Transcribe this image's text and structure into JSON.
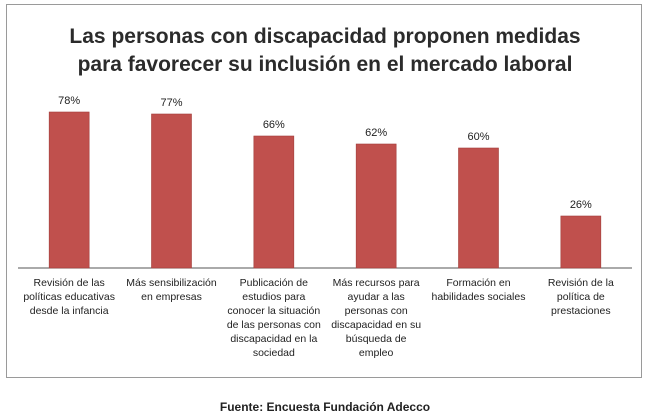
{
  "chart_data": {
    "type": "bar",
    "title_lines": [
      "Las personas con discapacidad proponen medidas",
      "para favorecer su inclusión en el mercado laboral"
    ],
    "categories": [
      [
        "Revisión de las",
        "políticas educativas",
        "desde la infancia"
      ],
      [
        "Más sensibilización",
        "en empresas"
      ],
      [
        "Publicación de",
        "estudios para",
        "conocer la situación",
        "de las personas con",
        "discapacidad en la",
        "sociedad"
      ],
      [
        "Más recursos para",
        "ayudar a las",
        "personas con",
        "discapacidad en su",
        "búsqueda de",
        "empleo"
      ],
      [
        "Formación en",
        "habilidades sociales"
      ],
      [
        "Revisión de la",
        "política de",
        "prestaciones"
      ]
    ],
    "values": [
      78,
      77,
      66,
      62,
      60,
      26
    ],
    "value_labels": [
      "78%",
      "77%",
      "66%",
      "62%",
      "60%",
      "26%"
    ],
    "ylim": [
      0,
      100
    ],
    "bar_color": "#c0504d",
    "grid": false,
    "legend": "none",
    "source": "Fuente: Encuesta Fundación Adecco"
  }
}
